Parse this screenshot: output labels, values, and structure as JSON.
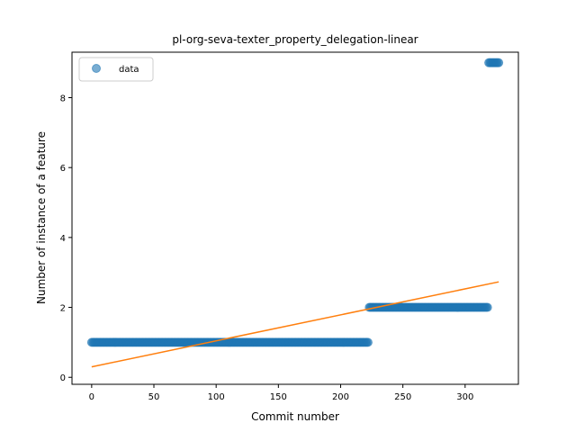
{
  "chart_data": {
    "type": "scatter",
    "title": "pl-org-seva-texter_property_delegation-linear",
    "xlabel": "Commit number",
    "ylabel": "Number of instance of a feature",
    "xlim": [
      -15.8,
      342.8
    ],
    "ylim": [
      -0.2,
      9.3
    ],
    "xticks": [
      0,
      50,
      100,
      150,
      200,
      250,
      300
    ],
    "yticks": [
      0,
      2,
      4,
      6,
      8
    ],
    "grid": false,
    "legend": {
      "placement": "upper-left",
      "entries": [
        "data"
      ]
    },
    "colors": {
      "data": "#1f77b4",
      "fit": "#ff7f0e"
    },
    "series": [
      {
        "name": "data",
        "kind": "scatter-runs",
        "runs": [
          {
            "x_start": 0,
            "x_end": 222,
            "y": 1
          },
          {
            "x_start": 223,
            "x_end": 318,
            "y": 2
          },
          {
            "x_start": 319,
            "x_end": 327,
            "y": 9
          }
        ]
      },
      {
        "kind": "line",
        "x": [
          0,
          327
        ],
        "y": [
          0.3,
          2.73
        ]
      }
    ]
  }
}
